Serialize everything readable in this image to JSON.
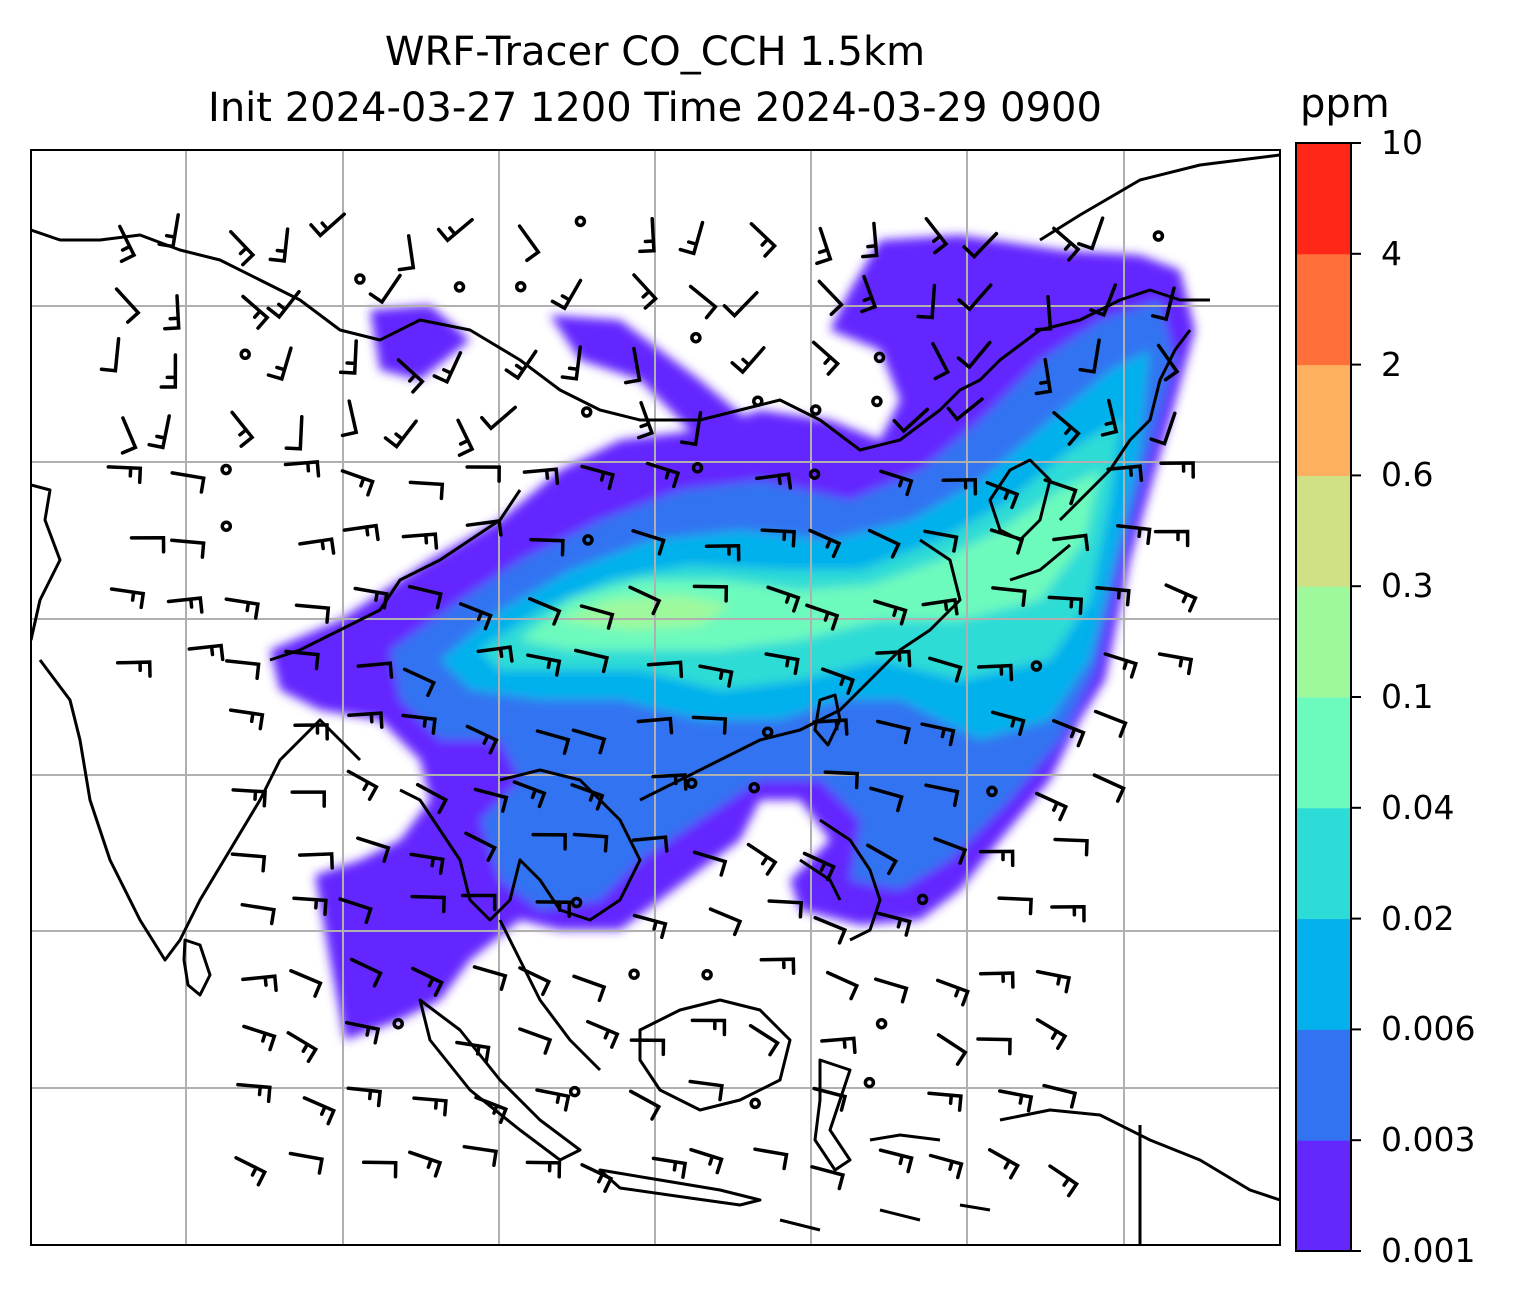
{
  "chart_data": {
    "type": "heatmap",
    "title_line1": "WRF-Tracer CO_CCH 1.5km",
    "title_line2": "Init 2024-03-27 1200 Time 2024-03-29 0900",
    "colorbar": {
      "unit": "ppm",
      "levels": [
        "0.001",
        "0.003",
        "0.006",
        "0.02",
        "0.04",
        "0.1",
        "0.3",
        "0.6",
        "2",
        "4",
        "10"
      ],
      "colors": [
        "#6428ff",
        "#3273f2",
        "#05b1ec",
        "#2ddcd6",
        "#6dfabd",
        "#9ef99d",
        "#d0e085",
        "#fdb05f",
        "#fe6f3a",
        "#ff2717"
      ]
    },
    "grid": true,
    "overlays": [
      "coastlines",
      "country borders",
      "wind barbs"
    ]
  }
}
